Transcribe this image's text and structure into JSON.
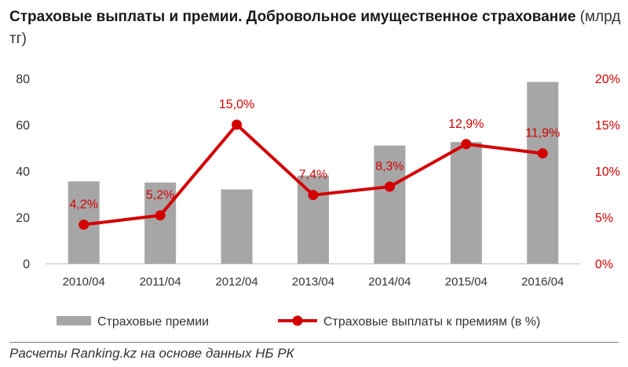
{
  "title": "Страховые выплаты и премии. Добровольное имущественное страхование",
  "unit": "(млрд тг)",
  "source": "Расчеты Ranking.kz на основе данных НБ РК",
  "colors": {
    "bar": "#a6a6a6",
    "line": "#d40000",
    "text": "#333333"
  },
  "chart_data": {
    "type": "bar+line",
    "categories": [
      "2010/04",
      "2011/04",
      "2012/04",
      "2013/04",
      "2014/04",
      "2015/04",
      "2016/04"
    ],
    "series": [
      {
        "name": "Страховые премии",
        "type": "bar",
        "axis": "left",
        "values": [
          35.5,
          35.0,
          32.0,
          38.0,
          51.0,
          52.5,
          78.5
        ]
      },
      {
        "name": "Страховые выплаты к премиям (в %)",
        "type": "line",
        "axis": "right",
        "values": [
          4.2,
          5.2,
          15.0,
          7.4,
          8.3,
          12.9,
          11.9
        ],
        "labels": [
          "4,2%",
          "5,2%",
          "15,0%",
          "7,4%",
          "8,3%",
          "12,9%",
          "11,9%"
        ]
      }
    ],
    "y_left": {
      "min": 0,
      "max": 80,
      "ticks": [
        "0",
        "20",
        "40",
        "60",
        "80"
      ]
    },
    "y_right": {
      "min": 0,
      "max": 20,
      "ticks": [
        "0%",
        "5%",
        "10%",
        "15%",
        "20%"
      ]
    },
    "grid": false,
    "legend_position": "bottom"
  }
}
